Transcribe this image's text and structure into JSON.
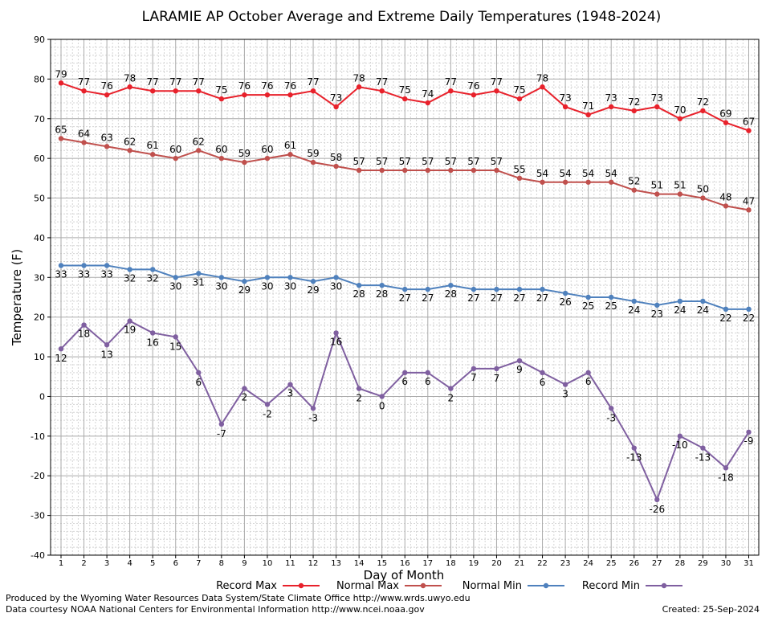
{
  "chart_data": {
    "type": "line",
    "title": "LARAMIE AP October Average and Extreme Daily Temperatures (1948-2024)",
    "xlabel": "Day of Month",
    "ylabel": "Temperature (F)",
    "ylim": [
      -40,
      90
    ],
    "yticks": [
      -40,
      -30,
      -20,
      -10,
      0,
      10,
      20,
      30,
      40,
      50,
      60,
      70,
      80,
      90
    ],
    "x": [
      1,
      2,
      3,
      4,
      5,
      6,
      7,
      8,
      9,
      10,
      11,
      12,
      13,
      14,
      15,
      16,
      17,
      18,
      19,
      20,
      21,
      22,
      23,
      24,
      25,
      26,
      27,
      28,
      29,
      30,
      31
    ],
    "grid": true,
    "legend_placement": "bottom",
    "series": [
      {
        "name": "Record Max",
        "color": "#e8212b",
        "values": [
          79,
          77,
          76,
          78,
          77,
          77,
          77,
          75,
          76,
          76,
          76,
          77,
          73,
          78,
          77,
          75,
          74,
          77,
          76,
          77,
          75,
          78,
          73,
          71,
          73,
          72,
          73,
          70,
          72,
          69,
          67
        ]
      },
      {
        "name": "Normal Max",
        "color": "#c0504d",
        "values": [
          65,
          64,
          63,
          62,
          61,
          60,
          62,
          60,
          59,
          60,
          61,
          59,
          58,
          57,
          57,
          57,
          57,
          57,
          57,
          57,
          55,
          54,
          54,
          54,
          54,
          52,
          51,
          51,
          50,
          48,
          47
        ]
      },
      {
        "name": "Normal Min",
        "color": "#4f81bd",
        "values": [
          33,
          33,
          33,
          32,
          32,
          30,
          31,
          30,
          29,
          30,
          30,
          29,
          30,
          28,
          28,
          27,
          27,
          28,
          27,
          27,
          27,
          27,
          26,
          25,
          25,
          24,
          23,
          24,
          24,
          22,
          22
        ]
      },
      {
        "name": "Record Min",
        "color": "#7f5fa0",
        "values": [
          12,
          18,
          13,
          19,
          16,
          15,
          6,
          -7,
          2,
          -2,
          3,
          -3,
          16,
          2,
          0,
          6,
          6,
          2,
          7,
          7,
          9,
          6,
          3,
          6,
          -3,
          -13,
          -26,
          -10,
          -13,
          -18,
          -9
        ]
      }
    ]
  },
  "footer": {
    "line1": "Produced by the Wyoming Water Resources Data System/State Climate Office http://www.wrds.uwyo.edu",
    "line2": "Data courtesy NOAA National Centers for Environmental Information http://www.ncei.noaa.gov",
    "created": "Created:  25-Sep-2024"
  }
}
